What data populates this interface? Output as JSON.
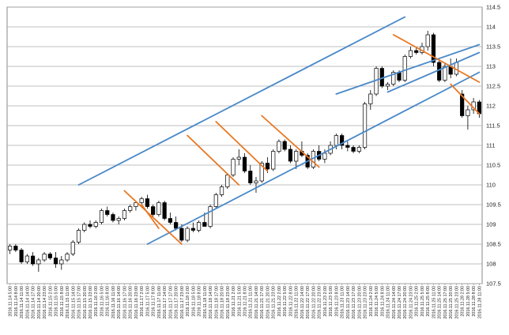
{
  "colors": {
    "background": "#ffffff",
    "frame": "#888888",
    "grid": "#aaaaaa",
    "candle_up_fill": "#ffffff",
    "candle_down_fill": "#000000",
    "candle_stroke": "#000000",
    "uptrend_channel": "#4a89c8",
    "downtrend_channel": "#e87722"
  },
  "chart_data": {
    "type": "candlestick",
    "title": "",
    "xlabel": "",
    "ylabel": "",
    "ylim": [
      107.5,
      114.5
    ],
    "y_ticks": [
      107.5,
      108,
      108.5,
      109,
      109.5,
      110,
      110.5,
      111,
      111.5,
      112,
      112.5,
      113,
      113.5,
      114,
      114.5
    ],
    "y_tick_labels": [
      "107.5",
      "108",
      "108.5",
      "109",
      "109.5",
      "110",
      "110.5",
      "111",
      "111.5",
      "112",
      "112.5",
      "113",
      "113.5",
      "114",
      "114.5"
    ],
    "grid": "horizontal",
    "x_tick_labels": [
      "2016.11.14 5:00",
      "2016.11.14 8:00",
      "2016.11.14 11:00",
      "2016.11.14 14:00",
      "2016.11.14 17:00",
      "2016.11.14 20:00",
      "2016.11.14 23:00",
      "2016.11.15 2:00",
      "2016.11.15 5:00",
      "2016.11.15 8:00",
      "2016.11.15 11:00",
      "2016.11.15 14:00",
      "2016.11.15 17:00",
      "2016.11.15 20:00",
      "2016.11.15 23:00",
      "2016.11.16 2:00",
      "2016.11.16 5:00",
      "2016.11.16 8:00",
      "2016.11.16 11:00",
      "2016.11.16 14:00",
      "2016.11.16 17:00",
      "2016.11.16 20:00",
      "2016.11.16 23:00",
      "2016.11.17 2:00",
      "2016.11.17 5:00",
      "2016.11.17 8:00",
      "2016.11.17 11:00",
      "2016.11.17 14:00",
      "2016.11.17 17:00",
      "2016.11.17 20:00",
      "2016.11.17 23:00",
      "2016.11.18 2:00",
      "2016.11.18 5:00",
      "2016.11.18 8:00",
      "2016.11.18 11:00",
      "2016.11.18 14:00",
      "2016.11.18 17:00",
      "2016.11.18 20:00",
      "2016.11.18 23:00",
      "2016.11.21 2:00",
      "2016.11.21 5:00",
      "2016.11.21 8:00",
      "2016.11.21 11:00",
      "2016.11.21 14:00",
      "2016.11.21 17:00",
      "2016.11.21 20:00",
      "2016.11.21 23:00",
      "2016.11.22 2:00",
      "2016.11.22 5:00",
      "2016.11.22 8:00",
      "2016.11.22 11:00",
      "2016.11.22 14:00",
      "2016.11.22 17:00",
      "2016.11.22 20:00",
      "2016.11.22 23:00",
      "2016.11.23 2:00",
      "2016.11.23 5:00",
      "2016.11.23 8:00",
      "2016.11.23 11:00",
      "2016.11.23 14:00",
      "2016.11.23 17:00",
      "2016.11.23 20:00",
      "2016.11.23 23:00",
      "2016.11.24 2:00",
      "2016.11.24 5:00",
      "2016.11.24 8:00",
      "2016.11.24 11:00",
      "2016.11.24 14:00",
      "2016.11.24 17:00",
      "2016.11.24 20:00",
      "2016.11.24 23:00",
      "2016.11.25 2:00",
      "2016.11.25 5:00",
      "2016.11.25 8:00",
      "2016.11.25 11:00",
      "2016.11.25 14:00",
      "2016.11.25 17:00",
      "2016.11.25 20:00",
      "2016.11.25 23:00",
      "2016.11.28 2:00",
      "2016.11.28 5:00",
      "2016.11.28 8:00",
      "2016.11.28 11:00"
    ],
    "candles": [
      [
        108.35,
        108.5,
        108.25,
        108.45
      ],
      [
        108.45,
        108.5,
        108.3,
        108.35
      ],
      [
        108.35,
        108.4,
        108.0,
        108.05
      ],
      [
        108.05,
        108.25,
        108.0,
        108.2
      ],
      [
        108.2,
        108.3,
        107.95,
        108.0
      ],
      [
        108.0,
        108.15,
        107.8,
        108.1
      ],
      [
        108.1,
        108.3,
        108.05,
        108.25
      ],
      [
        108.25,
        108.3,
        108.1,
        108.15
      ],
      [
        108.15,
        108.3,
        107.9,
        108.0
      ],
      [
        108.0,
        108.2,
        107.85,
        108.1
      ],
      [
        108.1,
        108.3,
        108.05,
        108.25
      ],
      [
        108.25,
        108.6,
        108.2,
        108.55
      ],
      [
        108.55,
        108.9,
        108.5,
        108.85
      ],
      [
        108.85,
        109.05,
        108.8,
        109.0
      ],
      [
        109.0,
        109.1,
        108.9,
        108.95
      ],
      [
        108.95,
        109.1,
        108.9,
        109.05
      ],
      [
        109.05,
        109.4,
        109.0,
        109.35
      ],
      [
        109.35,
        109.45,
        109.2,
        109.25
      ],
      [
        109.25,
        109.3,
        109.05,
        109.1
      ],
      [
        109.1,
        109.2,
        109.0,
        109.15
      ],
      [
        109.15,
        109.4,
        109.1,
        109.35
      ],
      [
        109.35,
        109.5,
        109.3,
        109.45
      ],
      [
        109.45,
        109.6,
        109.35,
        109.55
      ],
      [
        109.55,
        109.7,
        109.5,
        109.65
      ],
      [
        109.65,
        109.75,
        109.4,
        109.45
      ],
      [
        109.45,
        109.5,
        109.2,
        109.25
      ],
      [
        109.25,
        109.6,
        109.2,
        109.55
      ],
      [
        109.55,
        109.6,
        109.1,
        109.15
      ],
      [
        109.15,
        109.3,
        109.0,
        109.05
      ],
      [
        109.05,
        109.2,
        108.85,
        108.9
      ],
      [
        108.9,
        109.0,
        108.55,
        108.6
      ],
      [
        108.6,
        108.95,
        108.55,
        108.9
      ],
      [
        108.9,
        109.05,
        108.8,
        108.85
      ],
      [
        108.85,
        109.1,
        108.8,
        109.05
      ],
      [
        109.05,
        109.3,
        108.95,
        108.95
      ],
      [
        108.95,
        109.5,
        108.9,
        109.45
      ],
      [
        109.45,
        109.8,
        109.4,
        109.75
      ],
      [
        109.75,
        110.0,
        109.7,
        109.95
      ],
      [
        109.95,
        110.3,
        109.9,
        110.25
      ],
      [
        110.25,
        110.7,
        110.2,
        110.65
      ],
      [
        110.65,
        110.9,
        110.5,
        110.7
      ],
      [
        110.7,
        110.8,
        110.3,
        110.35
      ],
      [
        110.35,
        110.5,
        110.0,
        110.05
      ],
      [
        110.05,
        110.2,
        109.8,
        110.1
      ],
      [
        110.1,
        110.6,
        110.05,
        110.55
      ],
      [
        110.55,
        110.7,
        110.3,
        110.4
      ],
      [
        110.4,
        110.9,
        110.35,
        110.85
      ],
      [
        110.85,
        111.15,
        110.8,
        111.1
      ],
      [
        111.1,
        111.15,
        110.85,
        110.9
      ],
      [
        110.9,
        111.0,
        110.55,
        110.6
      ],
      [
        110.6,
        110.9,
        110.4,
        110.85
      ],
      [
        110.85,
        111.1,
        110.7,
        110.75
      ],
      [
        110.75,
        110.8,
        110.4,
        110.45
      ],
      [
        110.45,
        110.9,
        110.4,
        110.85
      ],
      [
        110.85,
        111.0,
        110.6,
        110.65
      ],
      [
        110.65,
        110.9,
        110.55,
        110.8
      ],
      [
        110.8,
        111.1,
        110.75,
        111.0
      ],
      [
        111.0,
        111.3,
        110.9,
        111.25
      ],
      [
        111.25,
        111.3,
        110.9,
        111.0
      ],
      [
        111.0,
        111.1,
        110.85,
        110.95
      ],
      [
        110.95,
        111.0,
        110.8,
        110.85
      ],
      [
        110.85,
        111.0,
        110.8,
        110.95
      ],
      [
        110.95,
        112.1,
        110.9,
        112.05
      ],
      [
        112.05,
        112.4,
        111.9,
        112.3
      ],
      [
        112.3,
        113.0,
        112.25,
        112.95
      ],
      [
        112.95,
        113.0,
        112.45,
        112.5
      ],
      [
        112.5,
        112.6,
        112.4,
        112.55
      ],
      [
        112.55,
        112.9,
        112.5,
        112.85
      ],
      [
        112.85,
        112.9,
        112.6,
        112.65
      ],
      [
        112.65,
        113.3,
        112.6,
        113.25
      ],
      [
        113.25,
        113.5,
        113.2,
        113.4
      ],
      [
        113.4,
        113.5,
        113.3,
        113.35
      ],
      [
        113.35,
        113.6,
        113.3,
        113.5
      ],
      [
        113.5,
        113.9,
        113.4,
        113.8
      ],
      [
        113.8,
        113.85,
        113.0,
        113.1
      ],
      [
        113.1,
        113.2,
        112.6,
        112.65
      ],
      [
        112.65,
        113.1,
        112.6,
        113.0
      ],
      [
        113.0,
        113.2,
        112.7,
        112.8
      ],
      [
        112.8,
        113.2,
        112.75,
        113.1
      ],
      [
        112.3,
        112.4,
        111.7,
        111.75
      ],
      [
        111.75,
        112.0,
        111.4,
        111.9
      ],
      [
        111.9,
        112.2,
        111.8,
        112.1
      ],
      [
        112.1,
        112.15,
        111.7,
        111.8
      ]
    ],
    "annotations": [
      {
        "type": "trendline",
        "color": "uptrend_channel",
        "start": [
          "2016.11.15 17:00",
          110.0
        ],
        "end": [
          "2016.11.24 20:00",
          114.25
        ]
      },
      {
        "type": "trendline",
        "color": "uptrend_channel",
        "start": [
          "2016.11.17 5:00",
          108.5
        ],
        "end": [
          "2016.11.28 11:00",
          112.85
        ]
      },
      {
        "type": "trendline",
        "color": "uptrend_channel",
        "start": [
          "2016.11.23 8:00",
          112.3
        ],
        "end": [
          "2016.11.28 11:00",
          113.55
        ]
      },
      {
        "type": "trendline",
        "color": "uptrend_channel",
        "start": [
          "2016.11.24 11:00",
          112.35
        ],
        "end": [
          "2016.11.28 11:00",
          113.35
        ]
      },
      {
        "type": "trendline",
        "color": "downtrend_channel",
        "start": [
          "2016.11.16 17:00",
          109.85
        ],
        "end": [
          "2016.11.17 23:00",
          108.5
        ]
      },
      {
        "type": "trendline",
        "color": "downtrend_channel",
        "start": [
          "2016.11.17 2:00",
          109.5
        ],
        "end": [
          "2016.11.17 11:00",
          108.9
        ]
      },
      {
        "type": "trendline",
        "color": "downtrend_channel",
        "start": [
          "2016.11.18 2:00",
          111.25
        ],
        "end": [
          "2016.11.21 5:00",
          110.0
        ]
      },
      {
        "type": "trendline",
        "color": "downtrend_channel",
        "start": [
          "2016.11.18 17:00",
          111.6
        ],
        "end": [
          "2016.11.21 20:00",
          110.35
        ]
      },
      {
        "type": "trendline",
        "color": "downtrend_channel",
        "start": [
          "2016.11.21 17:00",
          111.75
        ],
        "end": [
          "2016.11.22 23:00",
          110.45
        ]
      },
      {
        "type": "trendline",
        "color": "downtrend_channel",
        "start": [
          "2016.11.24 14:00",
          113.8
        ],
        "end": [
          "2016.11.28 11:00",
          112.6
        ]
      },
      {
        "type": "trendline",
        "color": "downtrend_channel",
        "start": [
          "2016.11.25 20:00",
          112.55
        ],
        "end": [
          "2016.11.28 11:00",
          111.8
        ]
      }
    ]
  }
}
